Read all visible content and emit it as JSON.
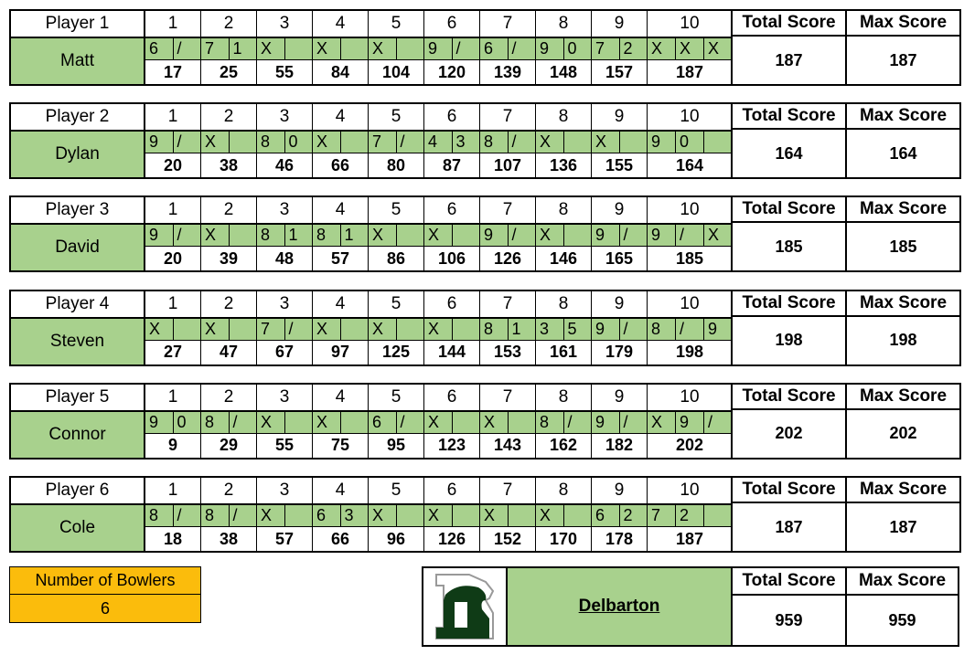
{
  "frame_numbers": [
    "1",
    "2",
    "3",
    "4",
    "5",
    "6",
    "7",
    "8",
    "9",
    "10"
  ],
  "total_label": "Total Score",
  "max_label": "Max Score",
  "colors": {
    "green": "#a8d18d",
    "orange": "#fbbc0c",
    "logo_green": "#0f3b16"
  },
  "players": [
    {
      "label": "Player 1",
      "name": "Matt",
      "throws": [
        [
          "6",
          "/"
        ],
        [
          "7",
          "1"
        ],
        [
          "X",
          ""
        ],
        [
          "X",
          ""
        ],
        [
          "X",
          ""
        ],
        [
          "9",
          "/"
        ],
        [
          "6",
          "/"
        ],
        [
          "9",
          "0"
        ],
        [
          "7",
          "2"
        ],
        [
          "X",
          "X",
          "X"
        ]
      ],
      "scores": [
        "17",
        "25",
        "55",
        "84",
        "104",
        "120",
        "139",
        "148",
        "157",
        "187"
      ],
      "total": "187",
      "max": "187"
    },
    {
      "label": "Player 2",
      "name": "Dylan",
      "throws": [
        [
          "9",
          "/"
        ],
        [
          "X",
          ""
        ],
        [
          "8",
          "0"
        ],
        [
          "X",
          ""
        ],
        [
          "7",
          "/"
        ],
        [
          "4",
          "3"
        ],
        [
          "8",
          "/"
        ],
        [
          "X",
          ""
        ],
        [
          "X",
          ""
        ],
        [
          "9",
          "0",
          ""
        ]
      ],
      "scores": [
        "20",
        "38",
        "46",
        "66",
        "80",
        "87",
        "107",
        "136",
        "155",
        "164"
      ],
      "total": "164",
      "max": "164"
    },
    {
      "label": "Player 3",
      "name": "David",
      "throws": [
        [
          "9",
          "/"
        ],
        [
          "X",
          ""
        ],
        [
          "8",
          "1"
        ],
        [
          "8",
          "1"
        ],
        [
          "X",
          ""
        ],
        [
          "X",
          ""
        ],
        [
          "9",
          "/"
        ],
        [
          "X",
          ""
        ],
        [
          "9",
          "/"
        ],
        [
          "9",
          "/",
          "X"
        ]
      ],
      "scores": [
        "20",
        "39",
        "48",
        "57",
        "86",
        "106",
        "126",
        "146",
        "165",
        "185"
      ],
      "total": "185",
      "max": "185"
    },
    {
      "label": "Player 4",
      "name": "Steven",
      "throws": [
        [
          "X",
          ""
        ],
        [
          "X",
          ""
        ],
        [
          "7",
          "/"
        ],
        [
          "X",
          ""
        ],
        [
          "X",
          ""
        ],
        [
          "X",
          ""
        ],
        [
          "8",
          "1"
        ],
        [
          "3",
          "5"
        ],
        [
          "9",
          "/"
        ],
        [
          "8",
          "/",
          "9"
        ]
      ],
      "scores": [
        "27",
        "47",
        "67",
        "97",
        "125",
        "144",
        "153",
        "161",
        "179",
        "198"
      ],
      "total": "198",
      "max": "198"
    },
    {
      "label": "Player 5",
      "name": "Connor",
      "throws": [
        [
          "9",
          "0"
        ],
        [
          "8",
          "/"
        ],
        [
          "X",
          ""
        ],
        [
          "X",
          ""
        ],
        [
          "6",
          "/"
        ],
        [
          "X",
          ""
        ],
        [
          "X",
          ""
        ],
        [
          "8",
          "/"
        ],
        [
          "9",
          "/"
        ],
        [
          "X",
          "9",
          "/"
        ]
      ],
      "scores": [
        "9",
        "29",
        "55",
        "75",
        "95",
        "123",
        "143",
        "162",
        "182",
        "202"
      ],
      "total": "202",
      "max": "202"
    },
    {
      "label": "Player 6",
      "name": "Cole",
      "throws": [
        [
          "8",
          "/"
        ],
        [
          "8",
          "/"
        ],
        [
          "X",
          ""
        ],
        [
          "6",
          "3"
        ],
        [
          "X",
          ""
        ],
        [
          "X",
          ""
        ],
        [
          "X",
          ""
        ],
        [
          "X",
          ""
        ],
        [
          "6",
          "2"
        ],
        [
          "7",
          "2",
          ""
        ]
      ],
      "scores": [
        "18",
        "38",
        "57",
        "66",
        "96",
        "126",
        "152",
        "170",
        "178",
        "187"
      ],
      "total": "187",
      "max": "187"
    }
  ],
  "bowlers": {
    "label": "Number of Bowlers",
    "value": "6"
  },
  "team": {
    "name": "Delbarton",
    "logo_letter": "D",
    "total": "959",
    "max": "959"
  }
}
